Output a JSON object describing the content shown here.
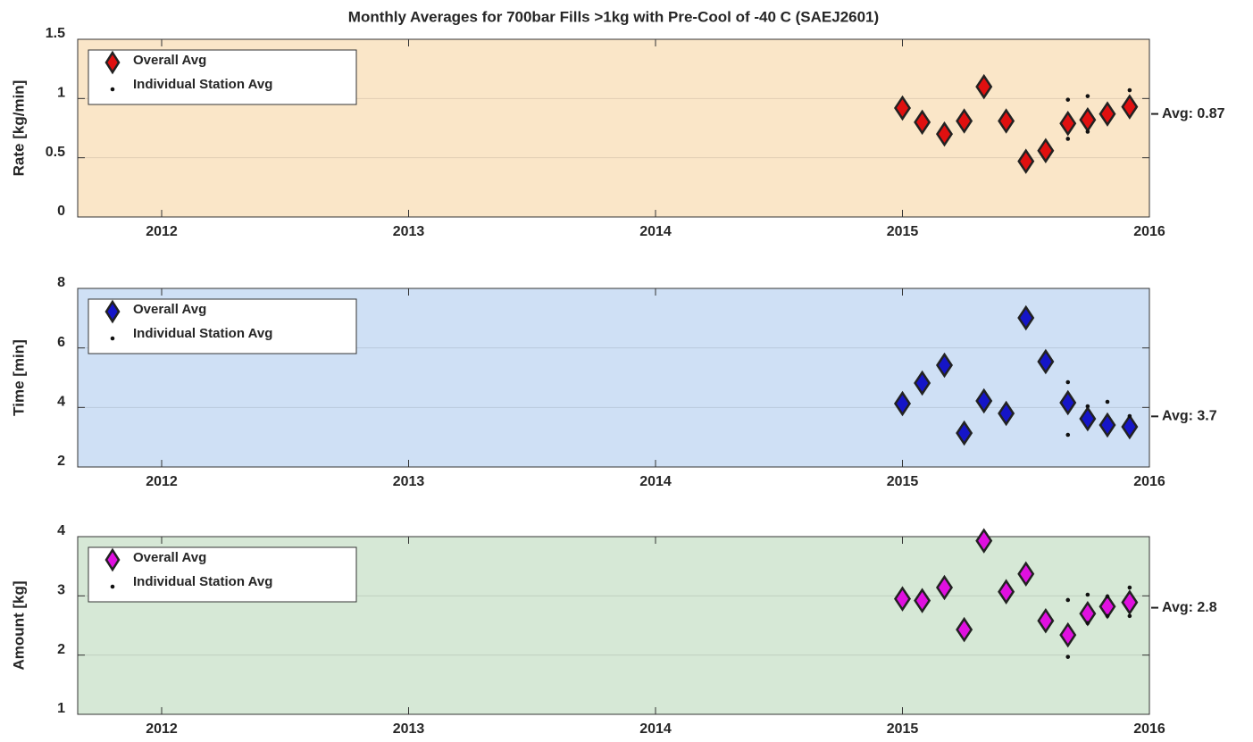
{
  "chart_data": [
    {
      "type": "scatter",
      "title": "Monthly Averages for 700bar Fills >1kg with Pre-Cool of -40 C (SAEJ2601)",
      "y_label": "Rate [kg/min]",
      "background": "#fae6c8",
      "grid": true,
      "legend": "upper left",
      "xlim": [
        2011.66,
        2016
      ],
      "xticks": [
        2012,
        2013,
        2014,
        2015,
        2016
      ],
      "ylim": [
        0,
        1.5
      ],
      "yticks": [
        0,
        0.5,
        1,
        1.5
      ],
      "avg": {
        "value": 0.87,
        "label": "Avg: 0.87"
      },
      "series": [
        {
          "name": "Overall Avg",
          "color": "#e01010",
          "marker": "diamond",
          "x": [
            2015.0,
            2015.08,
            2015.17,
            2015.25,
            2015.33,
            2015.42,
            2015.5,
            2015.58,
            2015.67,
            2015.75,
            2015.83,
            2015.92
          ],
          "values": [
            0.92,
            0.8,
            0.7,
            0.81,
            1.1,
            0.81,
            0.47,
            0.56,
            0.79,
            0.82,
            0.87,
            0.93
          ]
        },
        {
          "name": "Individual Station Avg",
          "color": "#111111",
          "marker": "dot",
          "x": [
            2015.67,
            2015.67,
            2015.75,
            2015.75,
            2015.92
          ],
          "values": [
            0.99,
            0.66,
            1.02,
            0.72,
            1.07
          ]
        }
      ]
    },
    {
      "type": "scatter",
      "y_label": "Time [min]",
      "background": "#cfe0f5",
      "grid": true,
      "legend": "upper left",
      "xlim": [
        2011.66,
        2016
      ],
      "xticks": [
        2012,
        2013,
        2014,
        2015,
        2016
      ],
      "ylim": [
        2,
        8
      ],
      "yticks": [
        2,
        4,
        6,
        8
      ],
      "avg": {
        "value": 3.7,
        "label": "Avg: 3.7"
      },
      "series": [
        {
          "name": "Overall Avg",
          "color": "#1515c8",
          "marker": "diamond",
          "x": [
            2015.0,
            2015.08,
            2015.17,
            2015.25,
            2015.33,
            2015.42,
            2015.5,
            2015.58,
            2015.67,
            2015.75,
            2015.83,
            2015.92
          ],
          "values": [
            4.13,
            4.82,
            5.42,
            3.14,
            4.22,
            3.8,
            7.01,
            5.54,
            4.16,
            3.62,
            3.41,
            3.35
          ]
        },
        {
          "name": "Individual Station Avg",
          "color": "#111111",
          "marker": "dot",
          "x": [
            2015.67,
            2015.67,
            2015.75,
            2015.83,
            2015.92
          ],
          "values": [
            4.85,
            3.08,
            4.04,
            4.19,
            3.71
          ]
        }
      ]
    },
    {
      "type": "scatter",
      "y_label": "Amount [kg]",
      "background": "#d6e8d6",
      "grid": true,
      "legend": "upper left",
      "xlim": [
        2011.66,
        2016
      ],
      "xticks": [
        2012,
        2013,
        2014,
        2015,
        2016
      ],
      "ylim": [
        1,
        4
      ],
      "yticks": [
        1,
        2,
        3,
        4
      ],
      "avg": {
        "value": 2.8,
        "label": "Avg: 2.8"
      },
      "series": [
        {
          "name": "Overall Avg",
          "color": "#e010e0",
          "marker": "diamond",
          "x": [
            2015.0,
            2015.08,
            2015.17,
            2015.25,
            2015.33,
            2015.42,
            2015.5,
            2015.58,
            2015.67,
            2015.75,
            2015.83,
            2015.92
          ],
          "values": [
            2.95,
            2.92,
            3.14,
            2.43,
            3.93,
            3.07,
            3.37,
            2.58,
            2.34,
            2.7,
            2.82,
            2.89
          ]
        },
        {
          "name": "Individual Station Avg",
          "color": "#111111",
          "marker": "dot",
          "x": [
            2015.67,
            2015.67,
            2015.75,
            2015.75,
            2015.83,
            2015.83,
            2015.92,
            2015.92
          ],
          "values": [
            2.93,
            1.97,
            3.02,
            2.54,
            2.99,
            2.66,
            3.14,
            2.66
          ]
        }
      ]
    }
  ]
}
